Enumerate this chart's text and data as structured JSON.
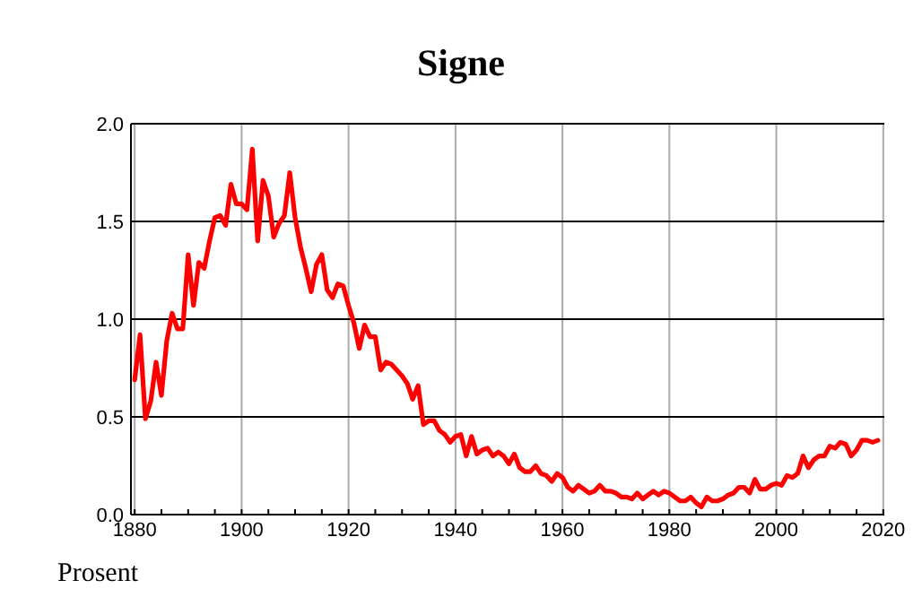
{
  "chart_data": {
    "type": "line",
    "title": "Signe",
    "ylabel": "Prosent",
    "x": [
      1880,
      1881,
      1882,
      1883,
      1884,
      1885,
      1886,
      1887,
      1888,
      1889,
      1890,
      1891,
      1892,
      1893,
      1894,
      1895,
      1896,
      1897,
      1898,
      1899,
      1900,
      1901,
      1902,
      1903,
      1904,
      1905,
      1906,
      1907,
      1908,
      1909,
      1910,
      1911,
      1912,
      1913,
      1914,
      1915,
      1916,
      1917,
      1918,
      1919,
      1920,
      1921,
      1922,
      1923,
      1924,
      1925,
      1926,
      1927,
      1928,
      1929,
      1930,
      1931,
      1932,
      1933,
      1934,
      1935,
      1936,
      1937,
      1938,
      1939,
      1940,
      1941,
      1942,
      1943,
      1944,
      1945,
      1946,
      1947,
      1948,
      1949,
      1950,
      1951,
      1952,
      1953,
      1954,
      1955,
      1956,
      1957,
      1958,
      1959,
      1960,
      1961,
      1962,
      1963,
      1964,
      1965,
      1966,
      1967,
      1968,
      1969,
      1970,
      1971,
      1972,
      1973,
      1974,
      1975,
      1976,
      1977,
      1978,
      1979,
      1980,
      1981,
      1982,
      1983,
      1984,
      1985,
      1986,
      1987,
      1988,
      1989,
      1990,
      1991,
      1992,
      1993,
      1994,
      1995,
      1996,
      1997,
      1998,
      1999,
      2000,
      2001,
      2002,
      2003,
      2004,
      2005,
      2006,
      2007,
      2008,
      2009,
      2010,
      2011,
      2012,
      2013,
      2014,
      2015,
      2016,
      2017,
      2018,
      2019
    ],
    "series": [
      {
        "color": "#ff0000",
        "values": [
          0.69,
          0.92,
          0.49,
          0.58,
          0.78,
          0.61,
          0.89,
          1.03,
          0.95,
          0.95,
          1.33,
          1.07,
          1.29,
          1.26,
          1.4,
          1.52,
          1.53,
          1.48,
          1.69,
          1.59,
          1.59,
          1.56,
          1.87,
          1.4,
          1.71,
          1.63,
          1.42,
          1.49,
          1.53,
          1.75,
          1.52,
          1.37,
          1.26,
          1.14,
          1.28,
          1.33,
          1.15,
          1.11,
          1.18,
          1.17,
          1.07,
          0.98,
          0.85,
          0.97,
          0.91,
          0.91,
          0.74,
          0.78,
          0.77,
          0.74,
          0.71,
          0.67,
          0.59,
          0.66,
          0.46,
          0.48,
          0.48,
          0.43,
          0.41,
          0.37,
          0.4,
          0.41,
          0.3,
          0.4,
          0.31,
          0.33,
          0.34,
          0.3,
          0.32,
          0.3,
          0.26,
          0.31,
          0.24,
          0.22,
          0.22,
          0.25,
          0.21,
          0.2,
          0.17,
          0.21,
          0.19,
          0.14,
          0.12,
          0.15,
          0.13,
          0.11,
          0.12,
          0.15,
          0.12,
          0.12,
          0.11,
          0.09,
          0.09,
          0.08,
          0.11,
          0.08,
          0.1,
          0.12,
          0.1,
          0.12,
          0.11,
          0.09,
          0.07,
          0.07,
          0.09,
          0.06,
          0.04,
          0.09,
          0.07,
          0.07,
          0.08,
          0.1,
          0.11,
          0.14,
          0.14,
          0.11,
          0.18,
          0.13,
          0.13,
          0.15,
          0.16,
          0.15,
          0.2,
          0.19,
          0.21,
          0.3,
          0.24,
          0.28,
          0.3,
          0.3,
          0.35,
          0.34,
          0.37,
          0.36,
          0.3,
          0.33,
          0.38,
          0.38,
          0.37,
          0.38
        ]
      }
    ],
    "xlim": [
      1879.3,
      2020.2
    ],
    "xticks": [
      1880,
      {
        "value": 1885,
        "label": null
      },
      {
        "value": 1890,
        "label": null
      },
      {
        "value": 1895,
        "label": null
      },
      1900,
      {
        "value": 1905,
        "label": null
      },
      {
        "value": 1910,
        "label": null
      },
      {
        "value": 1915,
        "label": null
      },
      1920,
      {
        "value": 1925,
        "label": null
      },
      {
        "value": 1930,
        "label": null
      },
      {
        "value": 1935,
        "label": null
      },
      1940,
      {
        "value": 1945,
        "label": null
      },
      {
        "value": 1950,
        "label": null
      },
      {
        "value": 1955,
        "label": null
      },
      1960,
      {
        "value": 1965,
        "label": null
      },
      {
        "value": 1970,
        "label": null
      },
      {
        "value": 1975,
        "label": null
      },
      1980,
      {
        "value": 1985,
        "label": null
      },
      {
        "value": 1990,
        "label": null
      },
      {
        "value": 1995,
        "label": null
      },
      2000,
      {
        "value": 2005,
        "label": null
      },
      {
        "value": 2010,
        "label": null
      },
      {
        "value": 2015,
        "label": null
      },
      2020
    ],
    "ylim": [
      0,
      2
    ],
    "yticks": [
      {
        "value": 0,
        "label": "0.0"
      },
      {
        "value": 0.5,
        "label": "0.5"
      },
      {
        "value": 1,
        "label": "1.0"
      },
      {
        "value": 1.5,
        "label": "1.5"
      },
      {
        "value": 2,
        "label": "2.0"
      }
    ],
    "grid": true,
    "marker": "none",
    "line_style": "solid"
  }
}
